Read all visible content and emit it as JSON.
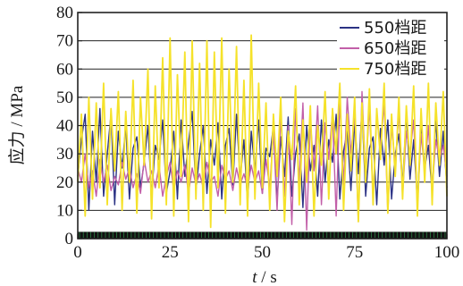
{
  "chart_data": {
    "type": "line",
    "xlabel_italic": "t",
    "xlabel_rest": " / s",
    "ylabel": "应力 / MPa",
    "xlim": [
      0,
      100
    ],
    "ylim": [
      0,
      80
    ],
    "x_ticks": [
      0,
      25,
      50,
      75,
      100
    ],
    "y_ticks": [
      0,
      10,
      20,
      30,
      40,
      50,
      60,
      70,
      80
    ],
    "grid": "horizontal",
    "legend_position": "top-right",
    "series": [
      {
        "name": "550档距",
        "color": "#2b3284",
        "points": [
          [
            0,
            22
          ],
          [
            1,
            35
          ],
          [
            2,
            44
          ],
          [
            3,
            10
          ],
          [
            4,
            38
          ],
          [
            5,
            20
          ],
          [
            6,
            46
          ],
          [
            7,
            15
          ],
          [
            8,
            30
          ],
          [
            9,
            44
          ],
          [
            10,
            12
          ],
          [
            11,
            38
          ],
          [
            12,
            25
          ],
          [
            13,
            40
          ],
          [
            14,
            14
          ],
          [
            15,
            32
          ],
          [
            16,
            36
          ],
          [
            17,
            18
          ],
          [
            18,
            27
          ],
          [
            19,
            40
          ],
          [
            20,
            15
          ],
          [
            21,
            33
          ],
          [
            22,
            28
          ],
          [
            23,
            42
          ],
          [
            24,
            16
          ],
          [
            25,
            24
          ],
          [
            26,
            38
          ],
          [
            27,
            14
          ],
          [
            28,
            42
          ],
          [
            29,
            22
          ],
          [
            30,
            34
          ],
          [
            31,
            45
          ],
          [
            32,
            17
          ],
          [
            33,
            30
          ],
          [
            34,
            40
          ],
          [
            35,
            16
          ],
          [
            36,
            35
          ],
          [
            37,
            26
          ],
          [
            38,
            41
          ],
          [
            39,
            14
          ],
          [
            40,
            33
          ],
          [
            41,
            39
          ],
          [
            42,
            19
          ],
          [
            43,
            44
          ],
          [
            44,
            21
          ],
          [
            45,
            35
          ],
          [
            46,
            12
          ],
          [
            47,
            38
          ],
          [
            48,
            24
          ],
          [
            49,
            42
          ],
          [
            50,
            16
          ],
          [
            51,
            32
          ],
          [
            52,
            29
          ],
          [
            53,
            40
          ],
          [
            54,
            13
          ],
          [
            55,
            36
          ],
          [
            56,
            22
          ],
          [
            57,
            43
          ],
          [
            58,
            15
          ],
          [
            59,
            30
          ],
          [
            60,
            37
          ],
          [
            61,
            11
          ],
          [
            62,
            40
          ],
          [
            63,
            24
          ],
          [
            64,
            33
          ],
          [
            65,
            15
          ],
          [
            66,
            42
          ],
          [
            67,
            20
          ],
          [
            68,
            35
          ],
          [
            69,
            27
          ],
          [
            70,
            44
          ],
          [
            71,
            14
          ],
          [
            72,
            31
          ],
          [
            73,
            38
          ],
          [
            74,
            17
          ],
          [
            75,
            41
          ],
          [
            76,
            23
          ],
          [
            77,
            46
          ],
          [
            78,
            15
          ],
          [
            79,
            32
          ],
          [
            80,
            36
          ],
          [
            81,
            12
          ],
          [
            82,
            39
          ],
          [
            83,
            26
          ],
          [
            84,
            42
          ],
          [
            85,
            14
          ],
          [
            86,
            30
          ],
          [
            87,
            37
          ],
          [
            88,
            19
          ],
          [
            89,
            44
          ],
          [
            90,
            21
          ],
          [
            91,
            35
          ],
          [
            92,
            13
          ],
          [
            93,
            40
          ],
          [
            94,
            25
          ],
          [
            95,
            33
          ],
          [
            96,
            16
          ],
          [
            97,
            42
          ],
          [
            98,
            22
          ],
          [
            99,
            38
          ],
          [
            100,
            18
          ]
        ]
      },
      {
        "name": "650档距",
        "color": "#c25fa8",
        "points": [
          [
            0,
            25
          ],
          [
            1,
            20
          ],
          [
            2,
            30
          ],
          [
            3,
            18
          ],
          [
            4,
            24
          ],
          [
            5,
            15
          ],
          [
            6,
            28
          ],
          [
            7,
            20
          ],
          [
            8,
            26
          ],
          [
            9,
            17
          ],
          [
            10,
            22
          ],
          [
            11,
            19
          ],
          [
            12,
            27
          ],
          [
            13,
            21
          ],
          [
            14,
            25
          ],
          [
            15,
            18
          ],
          [
            16,
            23
          ],
          [
            17,
            16
          ],
          [
            18,
            28
          ],
          [
            19,
            20
          ],
          [
            20,
            24
          ],
          [
            21,
            18
          ],
          [
            22,
            26
          ],
          [
            23,
            15
          ],
          [
            24,
            22
          ],
          [
            25,
            27
          ],
          [
            26,
            17
          ],
          [
            27,
            24
          ],
          [
            28,
            20
          ],
          [
            29,
            26
          ],
          [
            30,
            16
          ],
          [
            31,
            25
          ],
          [
            32,
            19
          ],
          [
            33,
            23
          ],
          [
            34,
            18
          ],
          [
            35,
            27
          ],
          [
            36,
            20
          ],
          [
            37,
            22
          ],
          [
            38,
            15
          ],
          [
            39,
            26
          ],
          [
            40,
            21
          ],
          [
            41,
            24
          ],
          [
            42,
            17
          ],
          [
            43,
            25
          ],
          [
            44,
            19
          ],
          [
            45,
            23
          ],
          [
            46,
            18
          ],
          [
            47,
            26
          ],
          [
            48,
            20
          ],
          [
            49,
            24
          ],
          [
            50,
            16
          ],
          [
            51,
            28
          ],
          [
            52,
            18
          ],
          [
            53,
            38
          ],
          [
            54,
            10
          ],
          [
            55,
            44
          ],
          [
            56,
            15
          ],
          [
            57,
            40
          ],
          [
            58,
            5
          ],
          [
            59,
            46
          ],
          [
            60,
            20
          ],
          [
            61,
            48
          ],
          [
            62,
            3
          ],
          [
            63,
            42
          ],
          [
            64,
            24
          ],
          [
            65,
            47
          ],
          [
            66,
            12
          ],
          [
            67,
            41
          ],
          [
            68,
            28
          ],
          [
            69,
            45
          ],
          [
            70,
            8
          ],
          [
            71,
            49
          ],
          [
            72,
            19
          ],
          [
            73,
            50
          ],
          [
            74,
            30
          ],
          [
            75,
            44
          ],
          [
            76,
            6
          ],
          [
            77,
            52
          ],
          [
            78,
            22
          ],
          [
            79,
            47
          ],
          [
            80,
            14
          ],
          [
            81,
            43
          ],
          [
            82,
            32
          ],
          [
            83,
            48
          ],
          [
            84,
            9
          ],
          [
            85,
            40
          ],
          [
            86,
            26
          ],
          [
            87,
            45
          ],
          [
            88,
            15
          ],
          [
            89,
            38
          ],
          [
            90,
            30
          ],
          [
            91,
            42
          ],
          [
            92,
            11
          ],
          [
            93,
            37
          ],
          [
            94,
            24
          ],
          [
            95,
            40
          ],
          [
            96,
            17
          ],
          [
            97,
            35
          ],
          [
            98,
            28
          ],
          [
            99,
            33
          ],
          [
            100,
            22
          ]
        ]
      },
      {
        "name": "750档距",
        "color": "#f5e22a",
        "points": [
          [
            0,
            20
          ],
          [
            1,
            44
          ],
          [
            2,
            8
          ],
          [
            3,
            50
          ],
          [
            4,
            14
          ],
          [
            5,
            48
          ],
          [
            6,
            18
          ],
          [
            7,
            55
          ],
          [
            8,
            12
          ],
          [
            9,
            46
          ],
          [
            10,
            24
          ],
          [
            11,
            52
          ],
          [
            12,
            10
          ],
          [
            13,
            45
          ],
          [
            14,
            20
          ],
          [
            15,
            56
          ],
          [
            16,
            9
          ],
          [
            17,
            50
          ],
          [
            18,
            26
          ],
          [
            19,
            60
          ],
          [
            20,
            7
          ],
          [
            21,
            54
          ],
          [
            22,
            18
          ],
          [
            23,
            64
          ],
          [
            24,
            12
          ],
          [
            25,
            71
          ],
          [
            26,
            8
          ],
          [
            27,
            58
          ],
          [
            28,
            22
          ],
          [
            29,
            66
          ],
          [
            30,
            6
          ],
          [
            31,
            70
          ],
          [
            32,
            14
          ],
          [
            33,
            62
          ],
          [
            34,
            10
          ],
          [
            35,
            70
          ],
          [
            36,
            4
          ],
          [
            37,
            66
          ],
          [
            38,
            18
          ],
          [
            39,
            71
          ],
          [
            40,
            9
          ],
          [
            41,
            60
          ],
          [
            42,
            20
          ],
          [
            43,
            68
          ],
          [
            44,
            12
          ],
          [
            45,
            56
          ],
          [
            46,
            8
          ],
          [
            47,
            72
          ],
          [
            48,
            14
          ],
          [
            49,
            55
          ],
          [
            50,
            18
          ],
          [
            51,
            48
          ],
          [
            52,
            10
          ],
          [
            53,
            44
          ],
          [
            54,
            22
          ],
          [
            55,
            50
          ],
          [
            56,
            6
          ],
          [
            57,
            38
          ],
          [
            58,
            28
          ],
          [
            59,
            54
          ],
          [
            60,
            12
          ],
          [
            61,
            42
          ],
          [
            62,
            20
          ],
          [
            63,
            47
          ],
          [
            64,
            8
          ],
          [
            65,
            40
          ],
          [
            66,
            26
          ],
          [
            67,
            52
          ],
          [
            68,
            14
          ],
          [
            69,
            46
          ],
          [
            70,
            30
          ],
          [
            71,
            55
          ],
          [
            72,
            10
          ],
          [
            73,
            44
          ],
          [
            74,
            24
          ],
          [
            75,
            50
          ],
          [
            76,
            6
          ],
          [
            77,
            48
          ],
          [
            78,
            20
          ],
          [
            79,
            53
          ],
          [
            80,
            12
          ],
          [
            81,
            46
          ],
          [
            82,
            28
          ],
          [
            83,
            55
          ],
          [
            84,
            9
          ],
          [
            85,
            44
          ],
          [
            86,
            22
          ],
          [
            87,
            50
          ],
          [
            88,
            14
          ],
          [
            89,
            47
          ],
          [
            90,
            26
          ],
          [
            91,
            54
          ],
          [
            92,
            8
          ],
          [
            93,
            46
          ],
          [
            94,
            20
          ],
          [
            95,
            55
          ],
          [
            96,
            12
          ],
          [
            97,
            48
          ],
          [
            98,
            26
          ],
          [
            99,
            52
          ],
          [
            100,
            15
          ]
        ]
      }
    ]
  }
}
